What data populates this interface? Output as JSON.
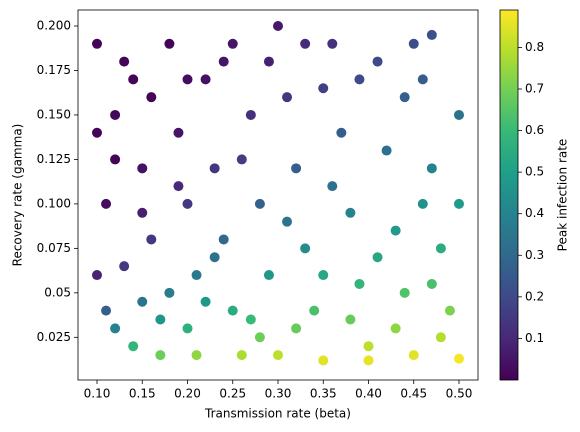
{
  "chart_data": {
    "type": "scatter",
    "xlabel": "Transmission rate (beta)",
    "ylabel": "Recovery rate (gamma)",
    "xlim": [
      0.079,
      0.521
    ],
    "xticks": [
      {
        "value": 0.1,
        "label": "0.10"
      },
      {
        "value": 0.15,
        "label": "0.15"
      },
      {
        "value": 0.2,
        "label": "0.20"
      },
      {
        "value": 0.25,
        "label": "0.25"
      },
      {
        "value": 0.3,
        "label": "0.30"
      },
      {
        "value": 0.35,
        "label": "0.35"
      },
      {
        "value": 0.4,
        "label": "0.40"
      },
      {
        "value": 0.45,
        "label": "0.45"
      },
      {
        "value": 0.5,
        "label": "0.50"
      }
    ],
    "ylim": [
      0.001,
      0.209
    ],
    "yticks": [
      0.025,
      0.05,
      0.075,
      {
        "value": 0.1,
        "label": "0.100"
      },
      0.125,
      {
        "value": 0.15,
        "label": "0.150"
      },
      0.175,
      {
        "value": 0.2,
        "label": "0.200"
      }
    ],
    "colormap": "viridis",
    "colorbar": {
      "label": "Peak infection rate",
      "lim": [
        0.0,
        0.89
      ],
      "ticks": [
        0.1,
        0.2,
        0.3,
        0.4,
        0.5,
        0.6,
        0.7,
        0.8
      ]
    },
    "x": [
      0.1,
      0.12,
      0.11,
      0.1,
      0.12,
      0.14,
      0.13,
      0.15,
      0.16,
      0.15,
      0.17,
      0.18,
      0.19,
      0.2,
      0.21,
      0.2,
      0.22,
      0.23,
      0.24,
      0.25,
      0.26,
      0.25,
      0.27,
      0.28,
      0.29,
      0.28,
      0.3,
      0.31,
      0.32,
      0.33,
      0.34,
      0.35,
      0.36,
      0.37,
      0.38,
      0.39,
      0.4,
      0.41,
      0.42,
      0.43,
      0.44,
      0.45,
      0.46,
      0.47,
      0.48,
      0.49,
      0.5,
      0.47,
      0.44,
      0.35,
      0.13,
      0.11,
      0.17,
      0.22,
      0.27,
      0.32,
      0.38,
      0.43,
      0.48,
      0.21,
      0.3,
      0.4,
      0.14,
      0.16,
      0.12,
      0.24,
      0.29,
      0.33,
      0.39,
      0.45,
      0.5,
      0.5,
      0.46,
      0.36,
      0.26,
      0.19,
      0.15,
      0.18,
      0.23,
      0.31,
      0.35,
      0.41,
      0.47,
      0.2,
      0.1
    ],
    "y": [
      0.19,
      0.15,
      0.1,
      0.06,
      0.03,
      0.02,
      0.18,
      0.12,
      0.08,
      0.045,
      0.015,
      0.19,
      0.14,
      0.1,
      0.06,
      0.03,
      0.17,
      0.12,
      0.08,
      0.04,
      0.015,
      0.19,
      0.15,
      0.1,
      0.06,
      0.025,
      0.2,
      0.16,
      0.12,
      0.075,
      0.04,
      0.012,
      0.19,
      0.14,
      0.095,
      0.055,
      0.02,
      0.18,
      0.13,
      0.085,
      0.05,
      0.015,
      0.17,
      0.12,
      0.075,
      0.04,
      0.013,
      0.195,
      0.16,
      0.165,
      0.065,
      0.04,
      0.035,
      0.045,
      0.035,
      0.03,
      0.035,
      0.03,
      0.025,
      0.015,
      0.015,
      0.012,
      0.17,
      0.16,
      0.125,
      0.18,
      0.18,
      0.19,
      0.17,
      0.19,
      0.15,
      0.1,
      0.1,
      0.11,
      0.125,
      0.11,
      0.095,
      0.05,
      0.07,
      0.09,
      0.06,
      0.07,
      0.055,
      0.17,
      0.14
    ],
    "c": [
      0.01,
      0.02,
      0.03,
      0.09,
      0.4,
      0.58,
      0.01,
      0.04,
      0.15,
      0.34,
      0.69,
      0.01,
      0.05,
      0.15,
      0.36,
      0.56,
      0.04,
      0.14,
      0.3,
      0.55,
      0.78,
      0.05,
      0.12,
      0.28,
      0.47,
      0.69,
      0.06,
      0.14,
      0.26,
      0.43,
      0.63,
      0.85,
      0.13,
      0.26,
      0.4,
      0.58,
      0.8,
      0.2,
      0.32,
      0.48,
      0.64,
      0.85,
      0.26,
      0.4,
      0.55,
      0.71,
      0.88,
      0.22,
      0.27,
      0.17,
      0.15,
      0.27,
      0.47,
      0.47,
      0.6,
      0.68,
      0.68,
      0.74,
      0.79,
      0.74,
      0.8,
      0.86,
      0.01,
      0.01,
      0.01,
      0.05,
      0.08,
      0.11,
      0.2,
      0.21,
      0.34,
      0.48,
      0.45,
      0.33,
      0.16,
      0.1,
      0.08,
      0.37,
      0.33,
      0.35,
      0.53,
      0.53,
      0.63,
      0.03,
      0.01
    ]
  }
}
